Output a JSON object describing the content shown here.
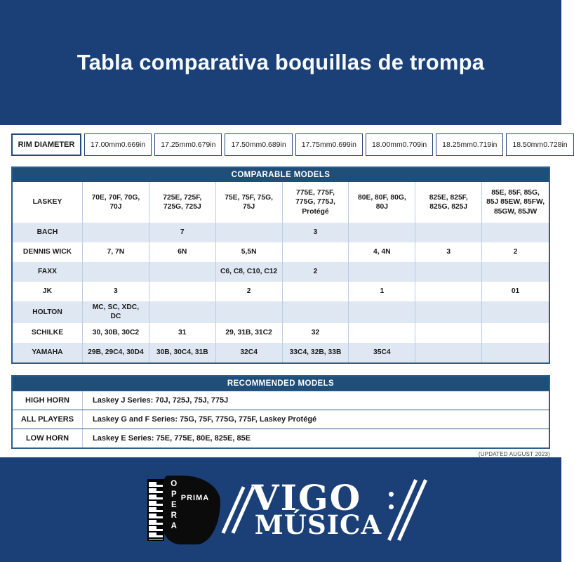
{
  "header": {
    "title": "Tabla comparativa boquillas de trompa"
  },
  "rim": {
    "label": "RIM DIAMETER",
    "sizes": [
      {
        "mm": "17.00mm",
        "in": "0.669in"
      },
      {
        "mm": "17.25mm",
        "in": "0.679in"
      },
      {
        "mm": "17.50mm",
        "in": "0.689in"
      },
      {
        "mm": "17.75mm",
        "in": "0.699in"
      },
      {
        "mm": "18.00mm",
        "in": "0.709in"
      },
      {
        "mm": "18.25mm",
        "in": "0.719in"
      },
      {
        "mm": "18.50mm",
        "in": "0.728in"
      }
    ]
  },
  "comparable": {
    "title": "COMPARABLE MODELS",
    "rows": [
      {
        "brand": "LASKEY",
        "cells": [
          "70E, 70F, 70G, 70J",
          "725E, 725F, 725G, 725J",
          "75E, 75F, 75G, 75J",
          "775E, 775F, 775G, 775J, Protégé",
          "80E, 80F, 80G, 80J",
          "825E, 825F, 825G, 825J",
          "85E, 85F, 85G, 85J 85EW, 85FW, 85GW, 85JW"
        ]
      },
      {
        "brand": "BACH",
        "cells": [
          "",
          "7",
          "",
          "3",
          "",
          "",
          ""
        ]
      },
      {
        "brand": "DENNIS WICK",
        "cells": [
          "7, 7N",
          "6N",
          "5,5N",
          "",
          "4, 4N",
          "3",
          "2"
        ]
      },
      {
        "brand": "FAXX",
        "cells": [
          "",
          "",
          "C6, C8, C10, C12",
          "2",
          "",
          "",
          ""
        ]
      },
      {
        "brand": "JK",
        "cells": [
          "3",
          "",
          "2",
          "",
          "1",
          "",
          "01"
        ]
      },
      {
        "brand": "HOLTON",
        "cells": [
          "MC, SC, XDC, DC",
          "",
          "",
          "",
          "",
          "",
          ""
        ]
      },
      {
        "brand": "SCHILKE",
        "cells": [
          "30, 30B, 30C2",
          "31",
          "29, 31B, 31C2",
          "32",
          "",
          "",
          ""
        ]
      },
      {
        "brand": "YAMAHA",
        "cells": [
          "29B, 29C4, 30D4",
          "30B, 30C4, 31B",
          "32C4",
          "33C4, 32B, 33B",
          "35C4",
          "",
          ""
        ]
      }
    ]
  },
  "recommended": {
    "title": "RECOMMENDED MODELS",
    "rows": [
      {
        "label": "HIGH HORN",
        "value": "Laskey J Series: 70J, 725J, 75J, 775J"
      },
      {
        "label": "ALL PLAYERS",
        "value": "Laskey G and F Series: 75G, 75F, 775G, 775F, Laskey Protégé"
      },
      {
        "label": "LOW HORN",
        "value": "Laskey E Series: 75E, 775E, 80E, 825E, 85E"
      }
    ]
  },
  "footnote": "(UPDATED AUGUST 2023)",
  "footer": {
    "opera": "OPERA",
    "prima": "PRIMA",
    "brand_line1": "VIGO",
    "brand_line2": "MÚSICA"
  },
  "colors": {
    "navy_background": "#1B4077",
    "table_header_blue": "#1F4E79",
    "row_stripe_blue": "#DEE7F2",
    "table_border_blue": "#2E5D8E"
  }
}
